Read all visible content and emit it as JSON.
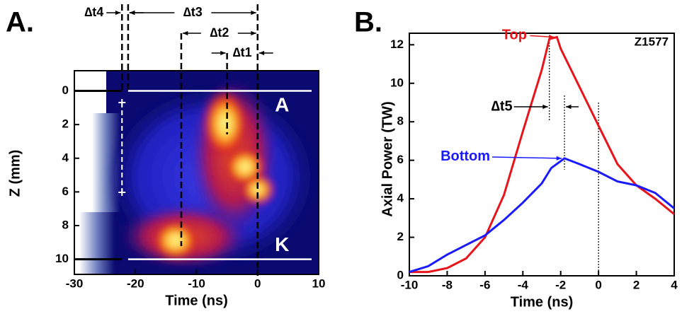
{
  "chart_data": [
    {
      "type": "image",
      "title": "A.",
      "xlabel": "Time (ns)",
      "ylabel": "Z (mm)",
      "xlim": [
        -30,
        10
      ],
      "xticks": [
        -30,
        -20,
        -10,
        0,
        10
      ],
      "ylim": [
        10.9,
        -1.2
      ],
      "yticks": [
        0,
        2,
        4,
        6,
        8,
        10
      ],
      "region_labels": [
        {
          "text": "A",
          "x": 4,
          "y": 0.9
        },
        {
          "text": "K",
          "x": 4,
          "y": 9.2
        }
      ],
      "electrode_lines": [
        0,
        10
      ],
      "dashed_lines": [
        -22.2,
        -21.2,
        -12.5,
        -5,
        0
      ],
      "intervals": [
        {
          "label": "∆t4",
          "x": [
            -22.2,
            -21.2
          ]
        },
        {
          "label": "∆t3",
          "x": [
            -21.2,
            0
          ]
        },
        {
          "label": "∆t2",
          "x": [
            -12.5,
            0
          ]
        },
        {
          "label": "∆t1",
          "x": [
            -5,
            0
          ]
        }
      ]
    },
    {
      "type": "line",
      "title": "B.",
      "xlabel": "Time (ns)",
      "ylabel": "Axial Power (TW)",
      "annotation": "Z1577",
      "xlim": [
        -10,
        4
      ],
      "xticks": [
        -10,
        -8,
        -6,
        -4,
        -2,
        0,
        2,
        4
      ],
      "ylim": [
        0,
        12.6
      ],
      "yticks": [
        0,
        2,
        4,
        6,
        8,
        10,
        12
      ],
      "dotted_lines": [
        -2.6,
        -1.8,
        0
      ],
      "interval": {
        "label": "∆t5",
        "x": [
          -2.6,
          -1.8
        ]
      },
      "series": [
        {
          "name": "Top",
          "color": "#e8141c",
          "x": [
            -10,
            -9,
            -8,
            -7,
            -6,
            -5,
            -4,
            -3,
            -2.6,
            -2.2,
            -2,
            -1,
            0,
            1,
            2,
            3,
            4
          ],
          "values": [
            0.2,
            0.2,
            0.4,
            0.9,
            2.0,
            4.2,
            7.5,
            10.7,
            12.3,
            12.4,
            11.8,
            9.8,
            7.8,
            5.8,
            4.7,
            4.0,
            3.2
          ]
        },
        {
          "name": "Bottom",
          "color": "#1a1aff",
          "x": [
            -10,
            -9,
            -8,
            -7,
            -6,
            -5,
            -4,
            -3,
            -2.5,
            -1.8,
            -1,
            0,
            1,
            2,
            3,
            4
          ],
          "values": [
            0.2,
            0.5,
            1.1,
            1.6,
            2.1,
            2.9,
            3.8,
            4.8,
            5.6,
            6.1,
            5.8,
            5.4,
            4.9,
            4.7,
            4.3,
            3.5
          ]
        }
      ]
    }
  ]
}
